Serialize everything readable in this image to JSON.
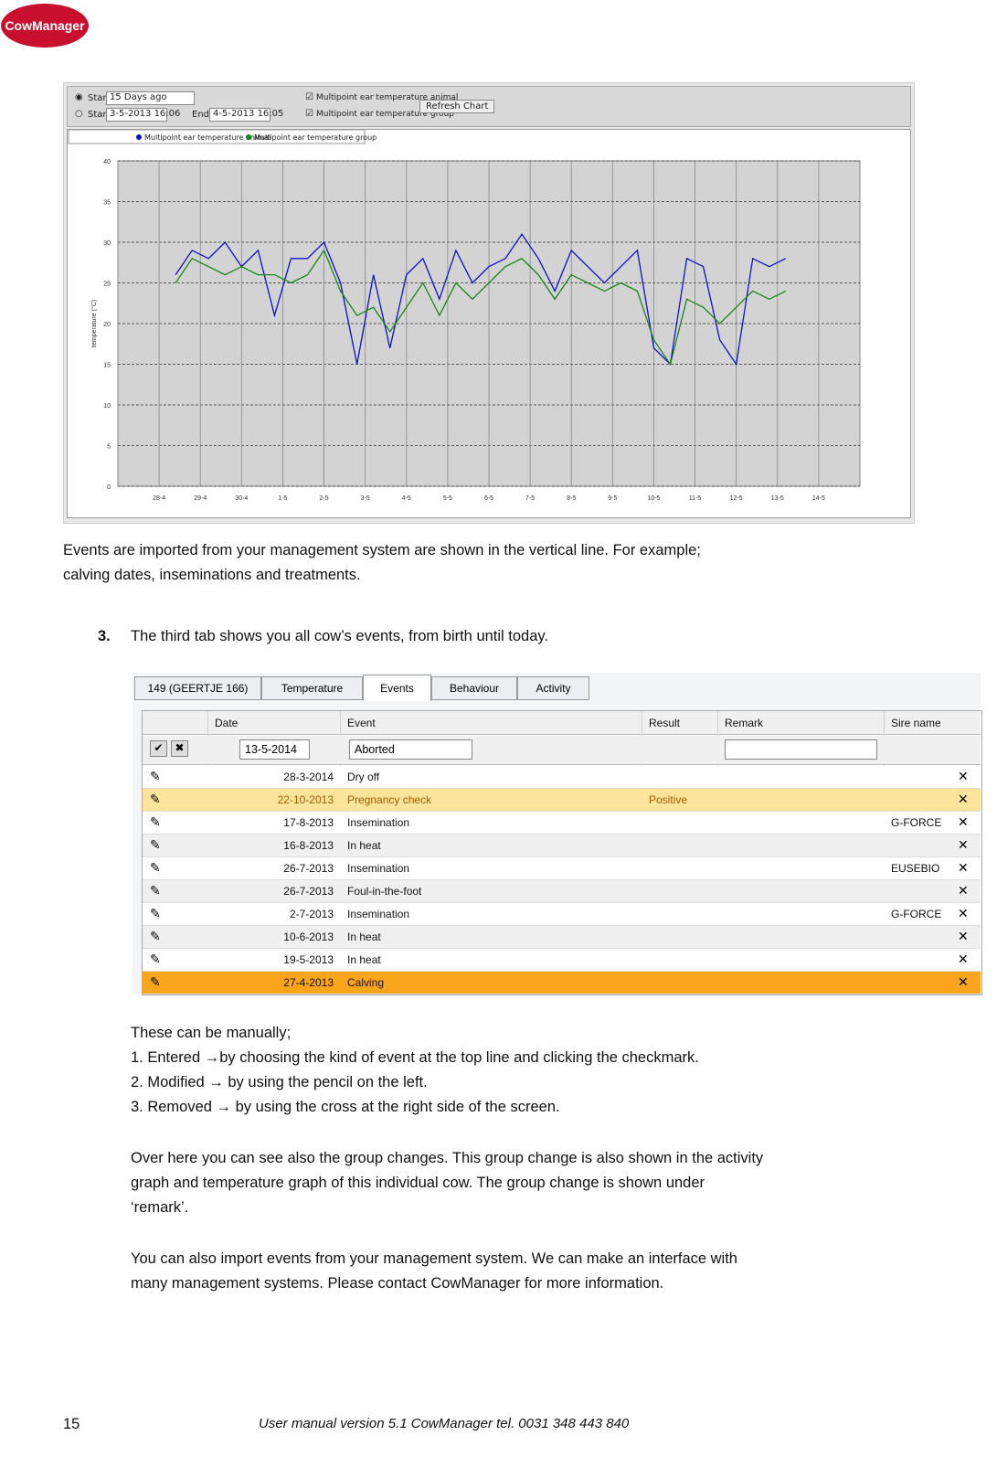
{
  "header": {
    "logo": "CowManager"
  },
  "chart_data": {
    "type": "line",
    "controls": {
      "start_mode": "Start",
      "start_preset": "15 Days ago",
      "start_label": "Start",
      "start_date": "3-5-2013 16:06",
      "end_label": "End",
      "end_date": "4-5-2013 16:05",
      "button": "Refresh Chart"
    },
    "y_label": "temperature (°C)",
    "x": [
      0.4,
      0.8,
      1.2,
      1.6,
      2.0,
      2.4,
      2.8,
      3.2,
      3.6,
      4.0,
      4.4,
      4.8,
      5.2,
      5.6,
      6.0,
      6.4,
      6.8,
      7.2,
      7.6,
      8.0,
      8.4,
      8.8,
      9.2,
      9.6,
      10.0,
      10.4,
      10.8,
      11.2,
      11.6,
      12.0,
      12.4,
      12.8,
      13.2,
      13.6,
      14.0,
      14.4,
      14.8,
      15.2
    ],
    "series": [
      {
        "name": "Multipoint ear temperature animal",
        "color": "#1010d0",
        "values": [
          26,
          29,
          28,
          30,
          27,
          29,
          21,
          28,
          28,
          30,
          25,
          15,
          26,
          17,
          26,
          28,
          23,
          29,
          25,
          27,
          28,
          31,
          28,
          24,
          29,
          27,
          25,
          27,
          29,
          17,
          15,
          28,
          27,
          18,
          15,
          28,
          27,
          28
        ]
      },
      {
        "name": "Multipoint ear temperature group",
        "color": "#158a15",
        "values": [
          25,
          28,
          27,
          26,
          27,
          26,
          26,
          25,
          26,
          29,
          24,
          21,
          22,
          19,
          22,
          25,
          21,
          25,
          23,
          25,
          27,
          28,
          26,
          23,
          26,
          25,
          24,
          25,
          24,
          18,
          15,
          23,
          22,
          20,
          22,
          24,
          23,
          24
        ]
      }
    ],
    "xlim": [
      -1,
      17
    ],
    "ylim": [
      0,
      40
    ],
    "xticks": [
      {
        "value": 0,
        "label": "28-4"
      },
      {
        "value": 1,
        "label": "29-4"
      },
      {
        "value": 2,
        "label": "30-4"
      },
      {
        "value": 3,
        "label": "1-5"
      },
      {
        "value": 4,
        "label": "2-5"
      },
      {
        "value": 5,
        "label": "3-5"
      },
      {
        "value": 6,
        "label": "4-5"
      },
      {
        "value": 7,
        "label": "5-5"
      },
      {
        "value": 8,
        "label": "6-5"
      },
      {
        "value": 9,
        "label": "7-5"
      },
      {
        "value": 10,
        "label": "8-5"
      },
      {
        "value": 11,
        "label": "9-5"
      },
      {
        "value": 12,
        "label": "10-5"
      },
      {
        "value": 13,
        "label": "11-5"
      },
      {
        "value": 14,
        "label": "12-5"
      },
      {
        "value": 15,
        "label": "13-5"
      },
      {
        "value": 16,
        "label": "14-5"
      }
    ],
    "yticks": [
      0,
      5,
      10,
      15,
      20,
      25,
      30,
      35,
      40
    ],
    "grid": true
  },
  "text": {
    "intro": [
      "Events are imported from your management system are shown in the vertical line. For example;",
      "calving dates, inseminations and treatments."
    ],
    "step_number": "3.",
    "step_text": "The third tab shows you all cow’s events, from birth until today.",
    "manual": [
      "These can be manually;",
      "1. Entered →by choosing the kind of event at the top line and clicking the checkmark.",
      "2. Modified → by using the pencil on the left.",
      "3. Removed → by using the cross at the right side of the screen."
    ],
    "group": [
      "Over here you can see also the group changes. This group change is also shown in the activity",
      "graph and temperature graph of this individual cow. The group change is shown under",
      "‘remark’."
    ],
    "import": [
      "You can also import events from your management system. We can make an interface with",
      "many management systems. Please contact CowManager for more information."
    ]
  },
  "events_table": {
    "tabs": [
      "149 (GEERTJE 166)",
      "Temperature",
      "Events",
      "Behaviour",
      "Activity"
    ],
    "columns": [
      "Date",
      "Event",
      "Result",
      "Remark",
      "Sire name"
    ],
    "filter": {
      "date": "13-5-2014",
      "event": "Aborted"
    },
    "rows": [
      {
        "date": "28-3-2014",
        "event": "Dry off"
      },
      {
        "date": "22-10-2013",
        "event": "Pregnancy check",
        "result": "Positive",
        "color": "#fde49b",
        "text_color": "#a85a00"
      },
      {
        "date": "17-8-2013",
        "event": "Insemination",
        "sire": "G-FORCE"
      },
      {
        "date": "16-8-2013",
        "event": "In heat"
      },
      {
        "date": "26-7-2013",
        "event": "Insemination",
        "sire": "EUSEBIO"
      },
      {
        "date": "26-7-2013",
        "event": "Foul-in-the-foot"
      },
      {
        "date": "2-7-2013",
        "event": "Insemination",
        "sire": "G-FORCE"
      },
      {
        "date": "10-6-2013",
        "event": "In heat"
      },
      {
        "date": "19-5-2013",
        "event": "In heat"
      },
      {
        "date": "27-4-2013",
        "event": "Calving",
        "color": "#fba51c"
      }
    ]
  },
  "footer": {
    "page": "15",
    "text": "User manual version 5.1 CowManager tel. 0031 348 443 840"
  }
}
